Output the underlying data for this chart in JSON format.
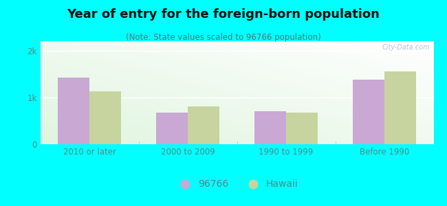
{
  "title": "Year of entry for the foreign-born population",
  "subtitle": "(Note: State values scaled to 96766 population)",
  "categories": [
    "2010 or later",
    "2000 to 2009",
    "1990 to 1999",
    "Before 1990"
  ],
  "values_96766": [
    1430,
    680,
    700,
    1380
  ],
  "values_hawaii": [
    1130,
    800,
    680,
    1560
  ],
  "color_96766": "#c9a8d4",
  "color_hawaii": "#c8d4a0",
  "background_fig": "#00ffff",
  "ylim": [
    0,
    2200
  ],
  "yticks": [
    0,
    1000,
    2000
  ],
  "ytick_labels": [
    "0",
    "1k",
    "2k"
  ],
  "legend_96766": "96766",
  "legend_hawaii": "Hawaii",
  "bar_width": 0.32,
  "title_fontsize": 13,
  "subtitle_fontsize": 8.5,
  "axis_label_fontsize": 8.5,
  "legend_fontsize": 10,
  "title_color": "#111111",
  "subtitle_color": "#557777",
  "tick_color": "#558888"
}
